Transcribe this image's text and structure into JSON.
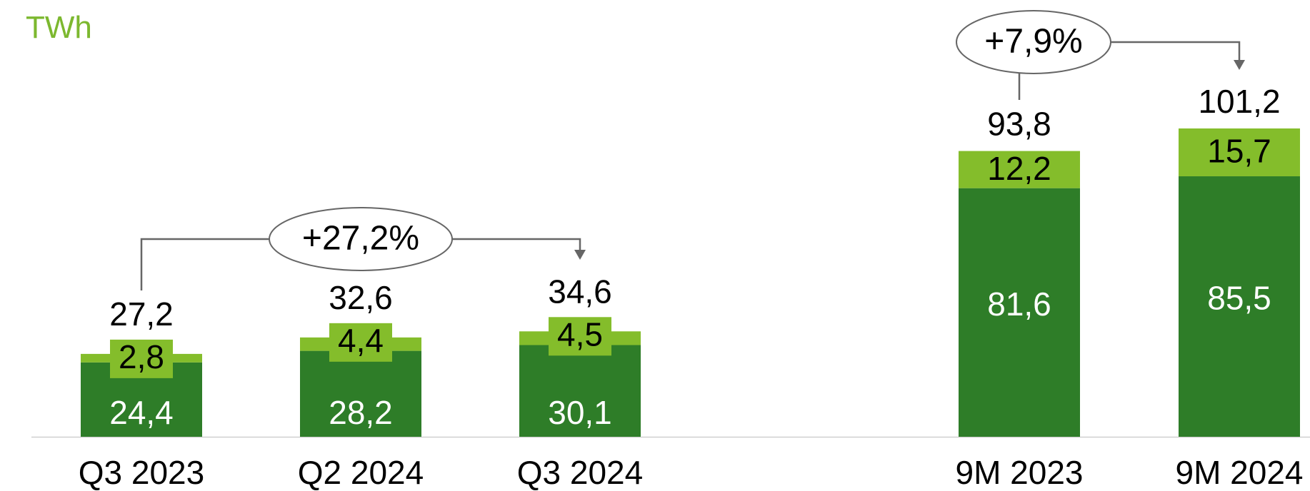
{
  "unit_label": "TWh",
  "colors": {
    "base": "#2e7d28",
    "top": "#84bd2b",
    "axis": "#cfcfcf",
    "bracket": "#666666",
    "label_dark": "#000000",
    "label_light": "#ffffff"
  },
  "chart_data": {
    "type": "bar",
    "stacked": true,
    "categories": [
      "Q3 2023",
      "Q2 2024",
      "Q3 2024",
      "9M 2023",
      "9M 2024"
    ],
    "series": [
      {
        "values": [
          24.4,
          28.2,
          30.1,
          81.6,
          85.5
        ]
      },
      {
        "values": [
          2.8,
          4.4,
          4.5,
          12.2,
          15.7
        ]
      }
    ],
    "series_labels": [
      [
        "24,4",
        "28,2",
        "30,1",
        "81,6",
        "85,5"
      ],
      [
        "2,8",
        "4,4",
        "4,5",
        "12,2",
        "15,7"
      ]
    ],
    "totals": [
      27.2,
      32.6,
      34.6,
      93.8,
      101.2
    ],
    "total_labels": [
      "27,2",
      "32,6",
      "34,6",
      "93,8",
      "101,2"
    ],
    "annotations": [
      {
        "from": "Q3 2023",
        "to": "Q3 2024",
        "text": "+27,2%"
      },
      {
        "from": "9M 2023",
        "to": "9M 2024",
        "text": "+7,9%"
      }
    ],
    "ylim": [
      0,
      101.2
    ]
  }
}
